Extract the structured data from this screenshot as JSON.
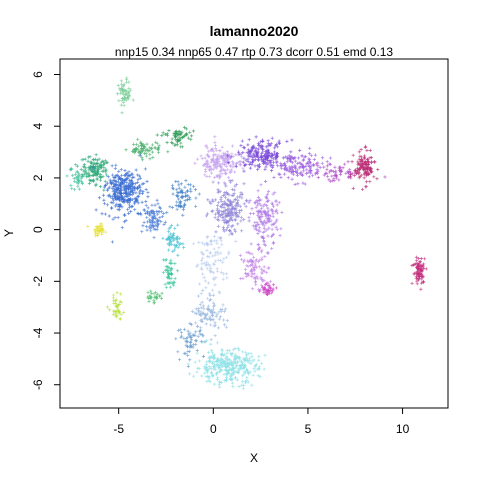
{
  "chart_data": {
    "type": "scatter",
    "title": "lamanno2020",
    "subtitle": "nnp15 0.34 nnp65 0.47 rtp 0.73 dcorr 0.51 emd 0.13",
    "xlabel": "X",
    "ylabel": "Y",
    "xlim": [
      -8.1,
      12.4
    ],
    "ylim": [
      -6.9,
      6.6
    ],
    "xticks": [
      -5,
      0,
      5,
      10
    ],
    "yticks": [
      -6,
      -4,
      -2,
      0,
      2,
      4,
      6
    ],
    "grid": false,
    "legend": "none",
    "marker": "plus",
    "clusters": [
      {
        "center": [
          -6.2,
          2.3
        ],
        "spread": [
          0.55,
          0.45
        ],
        "n": 120,
        "color": "#2aa877"
      },
      {
        "center": [
          -7.2,
          2.0
        ],
        "spread": [
          0.35,
          0.35
        ],
        "n": 40,
        "color": "#46c3a0"
      },
      {
        "center": [
          -4.7,
          5.3
        ],
        "spread": [
          0.3,
          0.4
        ],
        "n": 60,
        "color": "#7fcf9a"
      },
      {
        "center": [
          -3.6,
          3.1
        ],
        "spread": [
          0.7,
          0.3
        ],
        "n": 70,
        "color": "#4fb170"
      },
      {
        "center": [
          -1.9,
          3.6
        ],
        "spread": [
          0.6,
          0.25
        ],
        "n": 60,
        "color": "#2e9a55"
      },
      {
        "center": [
          -4.7,
          1.5
        ],
        "spread": [
          0.85,
          0.7
        ],
        "n": 320,
        "color": "#3c6fd1"
      },
      {
        "center": [
          -3.2,
          0.4
        ],
        "spread": [
          0.5,
          0.5
        ],
        "n": 80,
        "color": "#4f7fd8"
      },
      {
        "center": [
          -1.6,
          1.3
        ],
        "spread": [
          0.55,
          0.55
        ],
        "n": 70,
        "color": "#4a86c9"
      },
      {
        "center": [
          -2.1,
          -0.4
        ],
        "spread": [
          0.5,
          0.5
        ],
        "n": 50,
        "color": "#3fbfd1"
      },
      {
        "center": [
          -6.0,
          0.0
        ],
        "spread": [
          0.3,
          0.2
        ],
        "n": 40,
        "color": "#e6e03a"
      },
      {
        "center": [
          -5.1,
          -3.0
        ],
        "spread": [
          0.25,
          0.4
        ],
        "n": 40,
        "color": "#b8e23c"
      },
      {
        "center": [
          -2.3,
          -1.7
        ],
        "spread": [
          0.3,
          0.5
        ],
        "n": 50,
        "color": "#3fc59c"
      },
      {
        "center": [
          -3.1,
          -2.6
        ],
        "spread": [
          0.35,
          0.2
        ],
        "n": 25,
        "color": "#4fc070"
      },
      {
        "center": [
          0.8,
          0.8
        ],
        "spread": [
          0.7,
          0.8
        ],
        "n": 200,
        "color": "#8f86d8"
      },
      {
        "center": [
          0.3,
          2.6
        ],
        "spread": [
          0.9,
          0.5
        ],
        "n": 180,
        "color": "#c7a2ee"
      },
      {
        "center": [
          2.6,
          2.9
        ],
        "spread": [
          1.1,
          0.45
        ],
        "n": 200,
        "color": "#7a4ad8"
      },
      {
        "center": [
          4.5,
          2.4
        ],
        "spread": [
          1.2,
          0.45
        ],
        "n": 130,
        "color": "#a061e0"
      },
      {
        "center": [
          6.5,
          2.2
        ],
        "spread": [
          1.0,
          0.3
        ],
        "n": 60,
        "color": "#b050c8"
      },
      {
        "center": [
          8.0,
          2.4
        ],
        "spread": [
          0.45,
          0.5
        ],
        "n": 130,
        "color": "#bb2f77"
      },
      {
        "center": [
          2.7,
          0.4
        ],
        "spread": [
          0.6,
          0.9
        ],
        "n": 150,
        "color": "#b07ae6"
      },
      {
        "center": [
          2.2,
          -1.5
        ],
        "spread": [
          0.6,
          0.6
        ],
        "n": 90,
        "color": "#c58ae8"
      },
      {
        "center": [
          2.9,
          -2.3
        ],
        "spread": [
          0.3,
          0.2
        ],
        "n": 35,
        "color": "#cc3fc4"
      },
      {
        "center": [
          0.0,
          -1.2
        ],
        "spread": [
          0.8,
          0.9
        ],
        "n": 90,
        "color": "#b8ccee"
      },
      {
        "center": [
          -0.2,
          -3.2
        ],
        "spread": [
          0.7,
          0.6
        ],
        "n": 90,
        "color": "#9bb9e0"
      },
      {
        "center": [
          0.7,
          -5.3
        ],
        "spread": [
          1.4,
          0.55
        ],
        "n": 320,
        "color": "#8fe2e6"
      },
      {
        "center": [
          -1.2,
          -4.3
        ],
        "spread": [
          0.6,
          0.5
        ],
        "n": 60,
        "color": "#6f9fd0"
      },
      {
        "center": [
          10.9,
          -1.6
        ],
        "spread": [
          0.28,
          0.45
        ],
        "n": 90,
        "color": "#c4307e"
      }
    ]
  }
}
